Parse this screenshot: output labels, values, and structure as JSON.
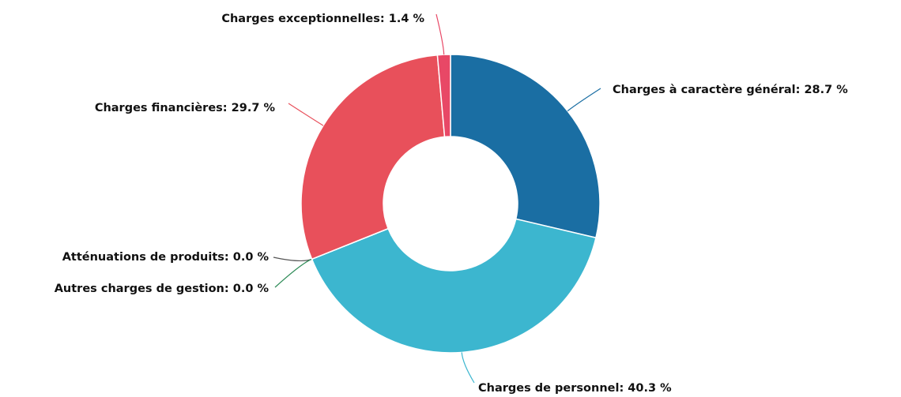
{
  "chart_data": {
    "type": "donut",
    "labels": [
      "Charges à caractère général: 28.7 %",
      "Charges de personnel: 40.3 %",
      "Atténuations de produits: 0.0 %",
      "Autres charges de gestion: 0.0 %",
      "Charges financières: 29.7 %",
      "Charges exceptionnelles: 1.4 %"
    ],
    "values": [
      28.7,
      40.3,
      0.0,
      0.0,
      29.7,
      1.4
    ],
    "colors": [
      "#1a6ea3",
      "#3cb6cf",
      "#555555",
      "#2e8b57",
      "#e8505b",
      "#e84866"
    ]
  }
}
